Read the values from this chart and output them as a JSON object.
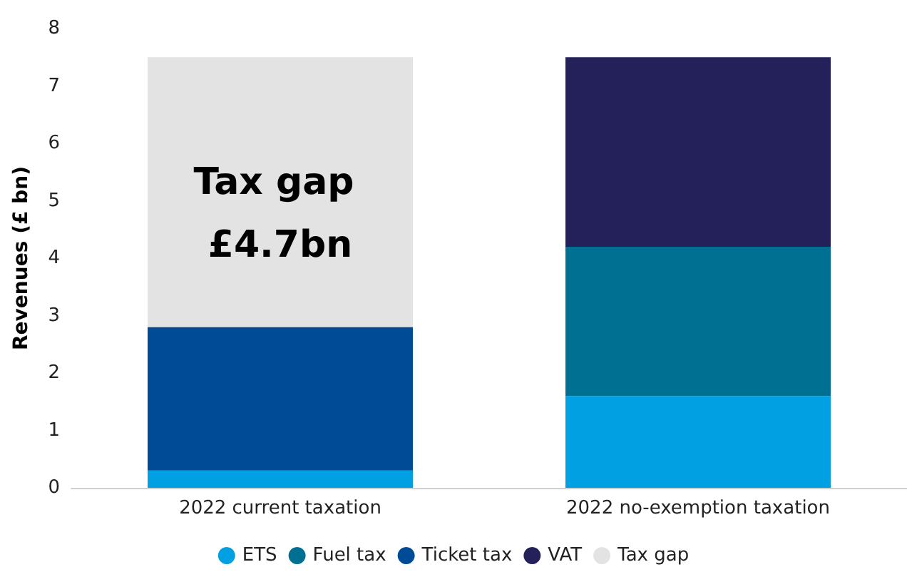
{
  "chart_data": {
    "type": "bar",
    "stacked": true,
    "ylabel": "Revenues (£ bn)",
    "categories": [
      "2022 current taxation",
      "2022 no-exemption taxation"
    ],
    "series": [
      {
        "name": "ETS",
        "color": "#00a0e3",
        "values": [
          0.3,
          1.6
        ]
      },
      {
        "name": "Fuel tax",
        "color": "#007092",
        "values": [
          null,
          2.6
        ]
      },
      {
        "name": "Ticket tax",
        "color": "#004b96",
        "values": [
          2.5,
          null
        ]
      },
      {
        "name": "VAT",
        "color": "#23205a",
        "values": [
          null,
          3.3
        ]
      },
      {
        "name": "Tax gap",
        "color": "#e3e3e3",
        "values": [
          4.7,
          null
        ]
      }
    ],
    "annotations": [
      "Tax gap £4.7bn"
    ],
    "ylim": [
      0,
      8
    ],
    "yticks": [
      0,
      1,
      2,
      3,
      4,
      5,
      6,
      7,
      8
    ],
    "grid": false,
    "legend": "bottom"
  }
}
